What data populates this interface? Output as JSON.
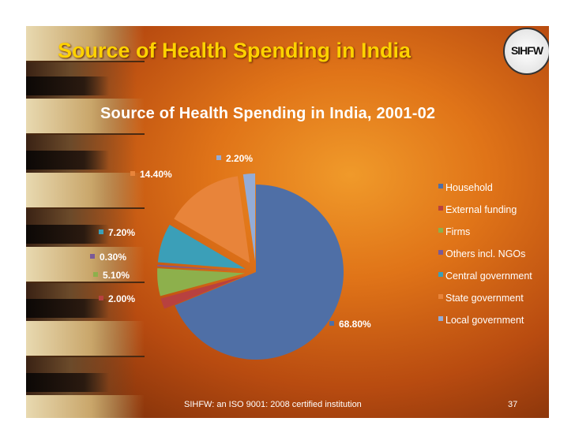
{
  "slide": {
    "title": "Source of Health Spending in India",
    "logo_text": "SIHFW",
    "footer": "SIHFW: an ISO 9001: 2008 certified institution",
    "page_number": "37"
  },
  "colors": {
    "title": "#ffd200",
    "text": "#ffffff"
  },
  "chart_data": {
    "type": "pie",
    "title": "Source of Health Spending in India, 2001-02",
    "legend_position": "right",
    "exploded": true,
    "slices": [
      {
        "label": "Household",
        "value": 68.8,
        "display": "68.80%",
        "color": "#4f6fa6"
      },
      {
        "label": "External funding",
        "value": 2.0,
        "display": "2.00%",
        "color": "#b8413f"
      },
      {
        "label": "Firms",
        "value": 5.1,
        "display": "5.10%",
        "color": "#8db04c"
      },
      {
        "label": "Others incl. NGOs",
        "value": 0.3,
        "display": "0.30%",
        "color": "#7a5a98"
      },
      {
        "label": "Central government",
        "value": 7.2,
        "display": "7.20%",
        "color": "#3b9fb8"
      },
      {
        "label": "State government",
        "value": 14.4,
        "display": "14.40%",
        "color": "#e8843a"
      },
      {
        "label": "Local government",
        "value": 2.2,
        "display": "2.20%",
        "color": "#94acd6"
      }
    ]
  }
}
